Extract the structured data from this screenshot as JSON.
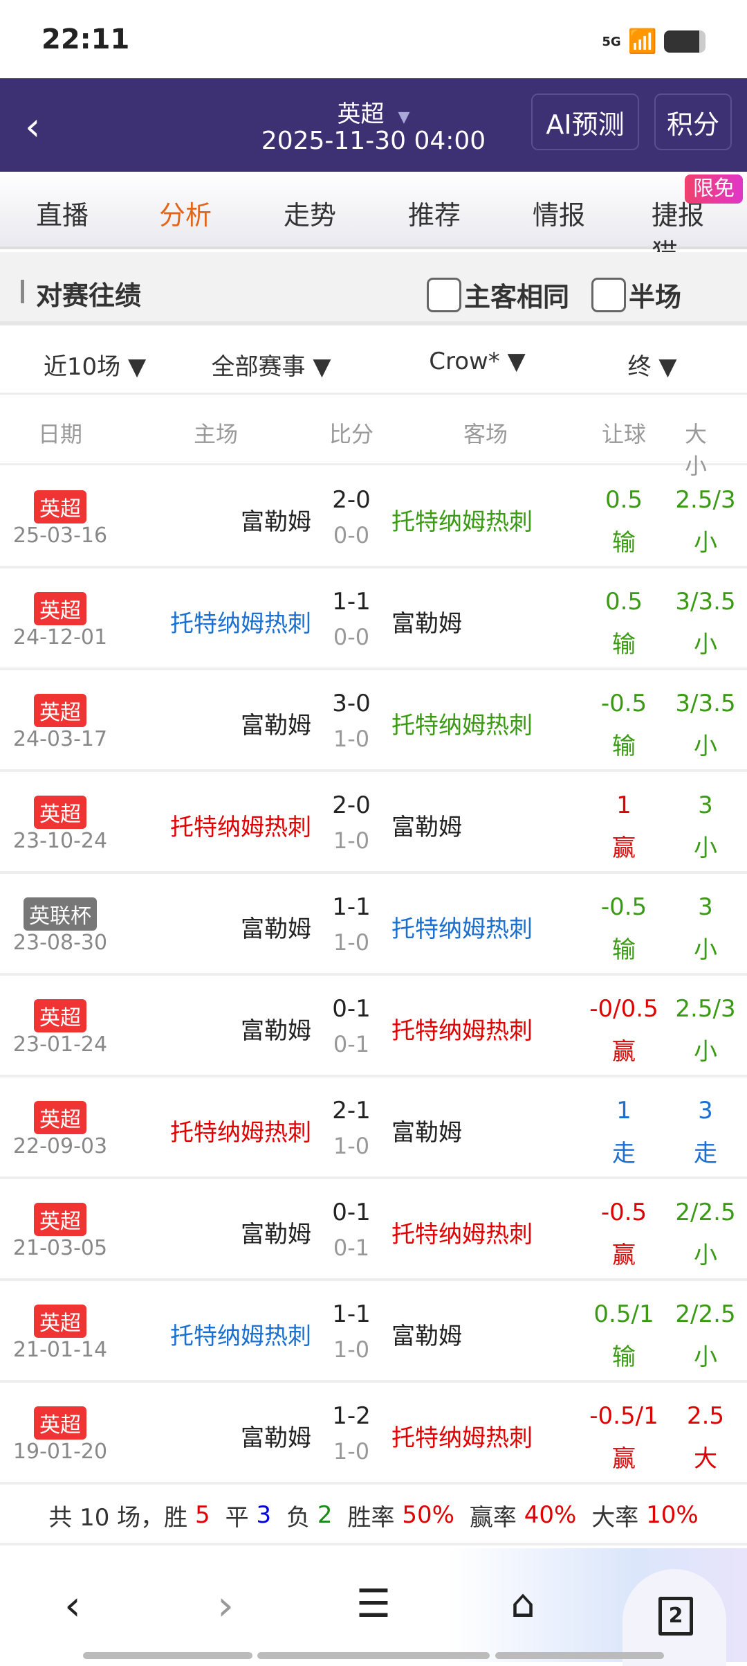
{
  "status": {
    "time": "22:11",
    "network": "5G"
  },
  "header": {
    "league": "英超",
    "datetime": "2025-11-30 04:00",
    "ai_button": "AI预测",
    "points_button": "积分"
  },
  "tabs": [
    {
      "label": "直播"
    },
    {
      "label": "分析",
      "active": true
    },
    {
      "label": "走势"
    },
    {
      "label": "推荐"
    },
    {
      "label": "情报"
    },
    {
      "label": "捷报猫"
    }
  ],
  "free_badge": "限免",
  "section": {
    "title": "对赛往绩",
    "same_home_away": "主客相同",
    "half_time": "半场"
  },
  "filters": [
    "近10场",
    "全部赛事",
    "Crow*",
    "终"
  ],
  "columns": [
    "日期",
    "主场",
    "比分",
    "客场",
    "让球",
    "大小"
  ],
  "colors": {
    "win": "#e00000",
    "lose": "#3a9a13",
    "draw": "#1a6fd1",
    "normal": "#222222"
  },
  "rows": [
    {
      "league": "英超",
      "date": "25-03-16",
      "home": "富勒姆",
      "home_c": "normal",
      "score": "2-0",
      "half": "0-0",
      "away": "托特纳姆热刺",
      "away_c": "lose",
      "hcp": "0.5",
      "hcp_r": "输",
      "hcp_c": "lose",
      "ou": "2.5/3",
      "ou_r": "小",
      "ou_c": "lose"
    },
    {
      "league": "英超",
      "date": "24-12-01",
      "home": "托特纳姆热刺",
      "home_c": "draw",
      "score": "1-1",
      "half": "0-0",
      "away": "富勒姆",
      "away_c": "normal",
      "hcp": "0.5",
      "hcp_r": "输",
      "hcp_c": "lose",
      "ou": "3/3.5",
      "ou_r": "小",
      "ou_c": "lose"
    },
    {
      "league": "英超",
      "date": "24-03-17",
      "home": "富勒姆",
      "home_c": "normal",
      "score": "3-0",
      "half": "1-0",
      "away": "托特纳姆热刺",
      "away_c": "lose",
      "hcp": "-0.5",
      "hcp_r": "输",
      "hcp_c": "lose",
      "ou": "3/3.5",
      "ou_r": "小",
      "ou_c": "lose"
    },
    {
      "league": "英超",
      "date": "23-10-24",
      "home": "托特纳姆热刺",
      "home_c": "win",
      "score": "2-0",
      "half": "1-0",
      "away": "富勒姆",
      "away_c": "normal",
      "hcp": "1",
      "hcp_r": "赢",
      "hcp_c": "win",
      "ou": "3",
      "ou_r": "小",
      "ou_c": "lose"
    },
    {
      "league": "英联杯",
      "grey": true,
      "date": "23-08-30",
      "home": "富勒姆",
      "home_c": "normal",
      "score": "1-1",
      "half": "1-0",
      "away": "托特纳姆热刺",
      "away_c": "draw",
      "hcp": "-0.5",
      "hcp_r": "输",
      "hcp_c": "lose",
      "ou": "3",
      "ou_r": "小",
      "ou_c": "lose"
    },
    {
      "league": "英超",
      "date": "23-01-24",
      "home": "富勒姆",
      "home_c": "normal",
      "score": "0-1",
      "half": "0-1",
      "away": "托特纳姆热刺",
      "away_c": "win",
      "hcp": "-0/0.5",
      "hcp_r": "赢",
      "hcp_c": "win",
      "ou": "2.5/3",
      "ou_r": "小",
      "ou_c": "lose"
    },
    {
      "league": "英超",
      "date": "22-09-03",
      "home": "托特纳姆热刺",
      "home_c": "win",
      "score": "2-1",
      "half": "1-0",
      "away": "富勒姆",
      "away_c": "normal",
      "hcp": "1",
      "hcp_r": "走",
      "hcp_c": "draw",
      "ou": "3",
      "ou_r": "走",
      "ou_c": "draw"
    },
    {
      "league": "英超",
      "date": "21-03-05",
      "home": "富勒姆",
      "home_c": "normal",
      "score": "0-1",
      "half": "0-1",
      "away": "托特纳姆热刺",
      "away_c": "win",
      "hcp": "-0.5",
      "hcp_r": "赢",
      "hcp_c": "win",
      "ou": "2/2.5",
      "ou_r": "小",
      "ou_c": "lose"
    },
    {
      "league": "英超",
      "date": "21-01-14",
      "home": "托特纳姆热刺",
      "home_c": "draw",
      "score": "1-1",
      "half": "1-0",
      "away": "富勒姆",
      "away_c": "normal",
      "hcp": "0.5/1",
      "hcp_r": "输",
      "hcp_c": "lose",
      "ou": "2/2.5",
      "ou_r": "小",
      "ou_c": "lose"
    },
    {
      "league": "英超",
      "date": "19-01-20",
      "home": "富勒姆",
      "home_c": "normal",
      "score": "1-2",
      "half": "1-0",
      "away": "托特纳姆热刺",
      "away_c": "win",
      "hcp": "-0.5/1",
      "hcp_r": "赢",
      "hcp_c": "win",
      "ou": "2.5",
      "ou_r": "大",
      "ou_c": "win"
    }
  ],
  "summary": {
    "total": "共 10 场，",
    "win_l": "胜 ",
    "win": "5",
    "draw_l": "平 ",
    "draw": "3",
    "lose_l": "负 ",
    "lose": "2",
    "wr_l": "胜率 ",
    "wr": "50%",
    "hr_l": "赢率 ",
    "hr": "40%",
    "or_l": "大率 ",
    "or": "10%"
  },
  "nav": {
    "tab_count": "2"
  }
}
